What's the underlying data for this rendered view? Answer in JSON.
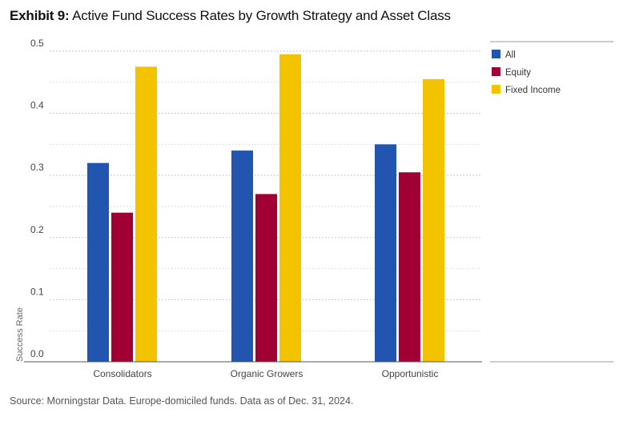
{
  "title_lead": "Exhibit 9:",
  "title_rest": " Active Fund Success Rates by Growth Strategy and Asset Class",
  "footer": "Source: Morningstar Data. Europe-domiciled funds. Data as of Dec. 31, 2024.",
  "chart_data": {
    "type": "bar",
    "categories": [
      "Consolidators",
      "Organic Growers",
      "Opportunistic"
    ],
    "series": [
      {
        "name": "All",
        "color": "#2255b0",
        "values": [
          0.32,
          0.34,
          0.35
        ]
      },
      {
        "name": "Equity",
        "color": "#a00034",
        "values": [
          0.24,
          0.27,
          0.305
        ]
      },
      {
        "name": "Fixed Income",
        "color": "#f3c300",
        "values": [
          0.475,
          0.495,
          0.455
        ]
      }
    ],
    "ylabel": "Success Rate",
    "ylim": [
      0,
      0.5
    ],
    "yticks": [
      "0.0",
      "0.1",
      "0.2",
      "0.3",
      "0.4",
      "0.5"
    ],
    "grid": true,
    "legend": "right"
  }
}
